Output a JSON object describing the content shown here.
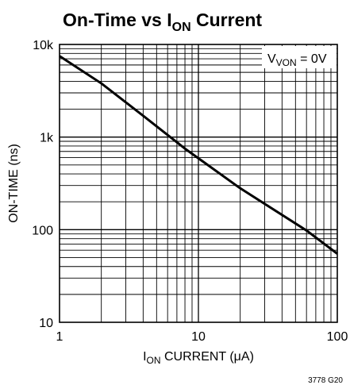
{
  "chart_data": {
    "type": "line",
    "title": {
      "main": "On-Time vs I",
      "sub": "ON",
      "tail": " Current"
    },
    "xlabel": {
      "pre": "I",
      "sub": "ON",
      "post": " CURRENT (μA)"
    },
    "ylabel": "ON-TIME (ns)",
    "x_scale": "log",
    "y_scale": "log",
    "xlim": [
      1,
      100
    ],
    "ylim": [
      10,
      10000
    ],
    "x_tick_labels": [
      "1",
      "10",
      "100"
    ],
    "y_tick_labels": [
      "10",
      "100",
      "1k",
      "10k"
    ],
    "grid": true,
    "annotation": {
      "pre": "V",
      "sub": "VON",
      "post": " = 0V"
    },
    "figure_code": "3778 G20",
    "series": [
      {
        "x": [
          1,
          2,
          4,
          8,
          20,
          60,
          100
        ],
        "values": [
          7500,
          3800,
          1700,
          750,
          280,
          98,
          55
        ]
      }
    ]
  }
}
